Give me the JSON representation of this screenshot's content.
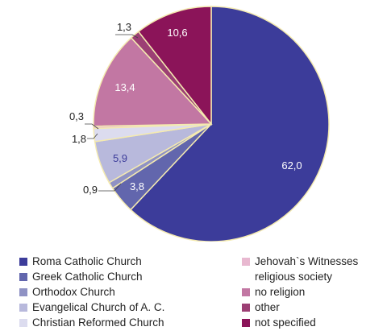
{
  "chart_data": {
    "type": "pie",
    "start_angle_deg": 0,
    "direction": "clockwise",
    "slice_border_color": "#f4eab0",
    "legend_placement": "bottom",
    "series": [
      {
        "name": "Roma Catholic Church",
        "label": "62,0",
        "value": 62.0,
        "color": "#3c3c9a",
        "label_color": "#ffffff"
      },
      {
        "name": "Greek Catholic Church",
        "label": "3,8",
        "value": 3.8,
        "color": "#6266ad",
        "label_color": "#ffffff"
      },
      {
        "name": "Orthodox Church",
        "label": "0,9",
        "value": 0.9,
        "color": "#8f92c4",
        "label_color": "#222222"
      },
      {
        "name": "Evangelical Church of A. C.",
        "label": "5,9",
        "value": 5.9,
        "color": "#b8b9dc",
        "label_color": "#3c3c9a"
      },
      {
        "name": "Christian Reformed Church",
        "label": "1,8",
        "value": 1.8,
        "color": "#dcdcef",
        "label_color": "#222222"
      },
      {
        "name": "Jehovah`s Witnesses religious society",
        "label": "0,3",
        "value": 0.3,
        "color": "#e8b8d0",
        "label_color": "#222222"
      },
      {
        "name": "no religion",
        "label": "13,4",
        "value": 13.4,
        "color": "#c277a3",
        "label_color": "#ffffff"
      },
      {
        "name": "other",
        "label": "1,3",
        "value": 1.3,
        "color": "#9c3f74",
        "label_color": "#222222"
      },
      {
        "name": "not specified",
        "label": "10,6",
        "value": 10.6,
        "color": "#8b1459",
        "label_color": "#ffffff"
      }
    ]
  },
  "legend": {
    "items": [
      {
        "label": "Roma Catholic Church",
        "color": "#3c3c9a"
      },
      {
        "label": "Greek Catholic Church",
        "color": "#6266ad"
      },
      {
        "label": "Orthodox Church",
        "color": "#8f92c4"
      },
      {
        "label": "Evangelical Church of A. C.",
        "color": "#b8b9dc"
      },
      {
        "label": "Christian Reformed Church",
        "color": "#dcdcef"
      },
      {
        "label": "Jehovah`s Witnesses",
        "label_line2": "religious society",
        "color": "#e8b8d0"
      },
      {
        "label": "no religion",
        "color": "#c277a3"
      },
      {
        "label": "other",
        "color": "#9c3f74"
      },
      {
        "label": "not specified",
        "color": "#8b1459"
      }
    ]
  }
}
